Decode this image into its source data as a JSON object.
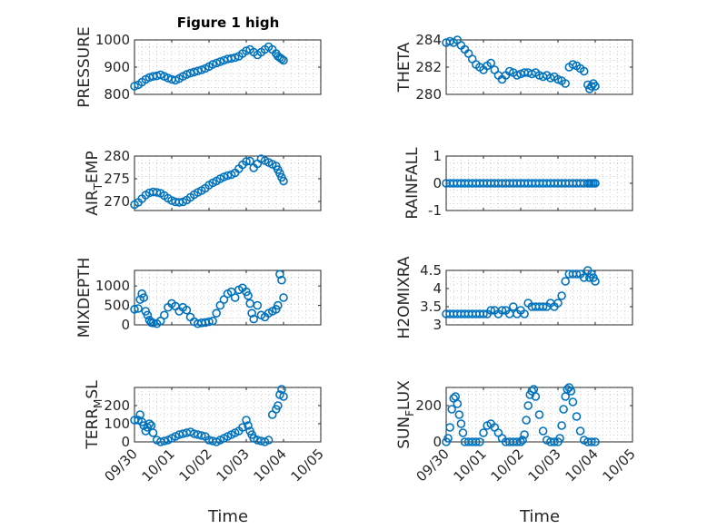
{
  "figure_title": "Figure 1 high",
  "xlabel": "Time",
  "x_tick_labels": [
    "09/30",
    "10/01",
    "10/02",
    "10/03",
    "10/04",
    "10/05"
  ],
  "marker_color": "#0072BD",
  "chart_data": [
    {
      "type": "scatter",
      "ylabel": "PRESSURE",
      "xlim": [
        0,
        5
      ],
      "ylim": [
        800,
        1000
      ],
      "y_ticks": [
        800,
        900,
        1000
      ],
      "x": [
        0.0,
        0.1,
        0.2,
        0.3,
        0.4,
        0.5,
        0.6,
        0.7,
        0.8,
        0.9,
        1.0,
        1.1,
        1.2,
        1.3,
        1.4,
        1.5,
        1.6,
        1.7,
        1.8,
        1.9,
        2.0,
        2.1,
        2.2,
        2.3,
        2.4,
        2.5,
        2.6,
        2.7,
        2.8,
        2.9,
        3.0,
        3.1,
        3.2,
        3.3,
        3.4,
        3.5,
        3.6,
        3.7,
        3.8,
        3.85,
        3.9,
        3.95,
        4.0
      ],
      "y": [
        830,
        835,
        845,
        855,
        862,
        866,
        868,
        872,
        866,
        860,
        855,
        852,
        858,
        866,
        873,
        878,
        882,
        886,
        890,
        895,
        902,
        910,
        915,
        920,
        925,
        930,
        932,
        935,
        940,
        950,
        960,
        965,
        955,
        945,
        955,
        965,
        975,
        965,
        950,
        940,
        935,
        930,
        925
      ],
      "grid": true
    },
    {
      "type": "scatter",
      "ylabel": "THETA",
      "xlim": [
        0,
        5
      ],
      "ylim": [
        280,
        284
      ],
      "y_ticks": [
        280,
        282,
        284
      ],
      "x": [
        0.0,
        0.1,
        0.2,
        0.3,
        0.4,
        0.5,
        0.6,
        0.7,
        0.8,
        0.9,
        1.0,
        1.1,
        1.2,
        1.3,
        1.4,
        1.5,
        1.6,
        1.7,
        1.8,
        1.9,
        2.0,
        2.1,
        2.2,
        2.3,
        2.4,
        2.5,
        2.6,
        2.7,
        2.8,
        2.9,
        3.0,
        3.1,
        3.2,
        3.3,
        3.4,
        3.5,
        3.6,
        3.7,
        3.8,
        3.85,
        3.9,
        3.95,
        4.0
      ],
      "y": [
        283.8,
        283.9,
        283.8,
        284.0,
        283.6,
        283.3,
        283.0,
        282.6,
        282.2,
        282.0,
        281.8,
        282.1,
        282.3,
        281.8,
        281.4,
        281.1,
        281.4,
        281.7,
        281.6,
        281.4,
        281.5,
        281.6,
        281.6,
        281.5,
        281.6,
        281.4,
        281.3,
        281.4,
        281.2,
        281.3,
        281.1,
        281.0,
        280.8,
        282.0,
        282.2,
        282.1,
        281.9,
        281.7,
        280.7,
        280.4,
        280.6,
        280.8,
        280.6
      ],
      "grid": true
    },
    {
      "type": "scatter",
      "ylabel": "AIR_TEMP",
      "xlim": [
        0,
        5
      ],
      "ylim": [
        268,
        280
      ],
      "y_ticks": [
        270,
        275,
        280
      ],
      "x": [
        0.0,
        0.1,
        0.2,
        0.3,
        0.4,
        0.5,
        0.6,
        0.7,
        0.8,
        0.9,
        1.0,
        1.1,
        1.2,
        1.3,
        1.4,
        1.5,
        1.6,
        1.7,
        1.8,
        1.9,
        2.0,
        2.1,
        2.2,
        2.3,
        2.4,
        2.5,
        2.6,
        2.7,
        2.8,
        2.9,
        3.0,
        3.1,
        3.2,
        3.3,
        3.4,
        3.5,
        3.6,
        3.7,
        3.8,
        3.85,
        3.9,
        3.95,
        4.0
      ],
      "y": [
        269.3,
        269.8,
        270.6,
        271.4,
        271.9,
        272.1,
        272.0,
        271.8,
        271.3,
        270.7,
        270.2,
        269.9,
        269.8,
        269.9,
        270.3,
        270.9,
        271.5,
        272.0,
        272.4,
        272.9,
        273.6,
        274.1,
        274.5,
        275.0,
        275.4,
        275.7,
        275.9,
        276.3,
        277.2,
        278.1,
        278.8,
        278.9,
        277.4,
        278.3,
        279.4,
        279.0,
        278.6,
        278.2,
        277.8,
        277.0,
        276.2,
        275.3,
        274.5
      ],
      "grid": true
    },
    {
      "type": "scatter",
      "ylabel": "RAINFALL",
      "xlim": [
        0,
        5
      ],
      "ylim": [
        -1,
        1
      ],
      "y_ticks": [
        -1,
        0,
        1
      ],
      "x": [
        0.0,
        0.1,
        0.2,
        0.3,
        0.4,
        0.5,
        0.6,
        0.7,
        0.8,
        0.9,
        1.0,
        1.1,
        1.2,
        1.3,
        1.4,
        1.5,
        1.6,
        1.7,
        1.8,
        1.9,
        2.0,
        2.1,
        2.2,
        2.3,
        2.4,
        2.5,
        2.6,
        2.7,
        2.8,
        2.9,
        3.0,
        3.1,
        3.2,
        3.3,
        3.4,
        3.5,
        3.6,
        3.7,
        3.8,
        3.85,
        3.9,
        3.95,
        4.0
      ],
      "y": [
        0,
        0,
        0,
        0,
        0,
        0,
        0,
        0,
        0,
        0,
        0,
        0,
        0,
        0,
        0,
        0,
        0,
        0,
        0,
        0,
        0,
        0,
        0,
        0,
        0,
        0,
        0,
        0,
        0,
        0,
        0,
        0,
        0,
        0,
        0,
        0,
        0,
        0,
        0,
        0,
        0,
        0,
        0
      ],
      "grid": true
    },
    {
      "type": "scatter",
      "ylabel": "MIXDEPTH",
      "xlim": [
        0,
        5
      ],
      "ylim": [
        0,
        1400
      ],
      "y_ticks": [
        0,
        500,
        1000
      ],
      "x": [
        0.0,
        0.1,
        0.15,
        0.2,
        0.25,
        0.3,
        0.35,
        0.4,
        0.45,
        0.5,
        0.6,
        0.7,
        0.8,
        0.9,
        1.0,
        1.1,
        1.2,
        1.3,
        1.4,
        1.5,
        1.6,
        1.7,
        1.8,
        1.9,
        2.0,
        2.1,
        2.2,
        2.3,
        2.4,
        2.5,
        2.6,
        2.7,
        2.8,
        2.9,
        3.0,
        3.05,
        3.1,
        3.15,
        3.2,
        3.3,
        3.4,
        3.5,
        3.6,
        3.7,
        3.8,
        3.85,
        3.9,
        3.95,
        4.0
      ],
      "y": [
        400,
        420,
        650,
        800,
        700,
        350,
        250,
        120,
        60,
        50,
        30,
        100,
        250,
        450,
        550,
        480,
        350,
        450,
        380,
        200,
        80,
        30,
        50,
        60,
        80,
        100,
        300,
        500,
        650,
        800,
        850,
        700,
        900,
        950,
        850,
        750,
        550,
        300,
        150,
        500,
        250,
        200,
        300,
        350,
        400,
        500,
        1300,
        1150,
        700
      ],
      "grid": true
    },
    {
      "type": "scatter",
      "ylabel": "H2OMIXRA",
      "xlim": [
        0,
        5
      ],
      "ylim": [
        3,
        4.5
      ],
      "y_ticks": [
        3,
        3.5,
        4,
        4.5
      ],
      "x": [
        0.0,
        0.1,
        0.2,
        0.3,
        0.4,
        0.5,
        0.6,
        0.7,
        0.8,
        0.9,
        1.0,
        1.1,
        1.2,
        1.3,
        1.4,
        1.5,
        1.6,
        1.7,
        1.8,
        1.9,
        2.0,
        2.1,
        2.2,
        2.3,
        2.4,
        2.5,
        2.6,
        2.7,
        2.8,
        2.9,
        3.0,
        3.1,
        3.2,
        3.3,
        3.4,
        3.5,
        3.6,
        3.7,
        3.8,
        3.85,
        3.9,
        3.95,
        4.0
      ],
      "y": [
        3.3,
        3.3,
        3.3,
        3.3,
        3.3,
        3.3,
        3.3,
        3.3,
        3.3,
        3.3,
        3.3,
        3.3,
        3.4,
        3.4,
        3.3,
        3.4,
        3.4,
        3.3,
        3.5,
        3.3,
        3.4,
        3.3,
        3.6,
        3.5,
        3.5,
        3.5,
        3.5,
        3.5,
        3.6,
        3.5,
        3.6,
        3.8,
        4.2,
        4.4,
        4.4,
        4.4,
        4.4,
        4.3,
        4.5,
        4.3,
        4.4,
        4.3,
        4.2
      ],
      "grid": true
    },
    {
      "type": "scatter",
      "ylabel": "TERR_MSL",
      "xlim": [
        0,
        5
      ],
      "ylim": [
        0,
        300
      ],
      "y_ticks": [
        0,
        100,
        200
      ],
      "x": [
        0.0,
        0.1,
        0.15,
        0.2,
        0.25,
        0.3,
        0.35,
        0.4,
        0.45,
        0.5,
        0.6,
        0.7,
        0.8,
        0.9,
        1.0,
        1.1,
        1.2,
        1.3,
        1.4,
        1.5,
        1.6,
        1.7,
        1.8,
        1.9,
        2.0,
        2.1,
        2.2,
        2.3,
        2.4,
        2.5,
        2.6,
        2.7,
        2.8,
        2.9,
        3.0,
        3.05,
        3.1,
        3.15,
        3.2,
        3.3,
        3.4,
        3.5,
        3.6,
        3.7,
        3.8,
        3.85,
        3.9,
        3.95,
        4.0
      ],
      "y": [
        120,
        120,
        150,
        110,
        90,
        60,
        80,
        100,
        90,
        50,
        10,
        0,
        5,
        10,
        20,
        30,
        40,
        45,
        50,
        55,
        45,
        40,
        35,
        30,
        10,
        5,
        0,
        10,
        20,
        30,
        40,
        50,
        60,
        80,
        120,
        90,
        60,
        40,
        20,
        10,
        5,
        0,
        10,
        150,
        180,
        200,
        260,
        290,
        250
      ],
      "grid": true
    },
    {
      "type": "scatter",
      "ylabel": "SUN_FLUX",
      "xlim": [
        0,
        5
      ],
      "ylim": [
        0,
        300
      ],
      "y_ticks": [
        0,
        200
      ],
      "x": [
        0.0,
        0.05,
        0.1,
        0.15,
        0.2,
        0.25,
        0.3,
        0.35,
        0.4,
        0.45,
        0.5,
        0.6,
        0.7,
        0.8,
        0.9,
        1.0,
        1.1,
        1.2,
        1.3,
        1.4,
        1.5,
        1.6,
        1.7,
        1.8,
        1.9,
        2.0,
        2.05,
        2.1,
        2.15,
        2.2,
        2.25,
        2.3,
        2.35,
        2.4,
        2.5,
        2.6,
        2.7,
        2.8,
        2.9,
        3.0,
        3.05,
        3.1,
        3.15,
        3.2,
        3.25,
        3.3,
        3.35,
        3.4,
        3.5,
        3.6,
        3.7,
        3.8,
        3.9,
        4.0
      ],
      "y": [
        0,
        20,
        80,
        180,
        240,
        250,
        210,
        150,
        100,
        50,
        0,
        0,
        0,
        0,
        0,
        50,
        90,
        100,
        80,
        50,
        20,
        0,
        0,
        0,
        0,
        0,
        10,
        40,
        120,
        200,
        260,
        280,
        290,
        250,
        150,
        60,
        10,
        0,
        0,
        0,
        20,
        90,
        180,
        250,
        290,
        300,
        280,
        220,
        140,
        60,
        10,
        0,
        0,
        0
      ],
      "grid": true
    }
  ]
}
